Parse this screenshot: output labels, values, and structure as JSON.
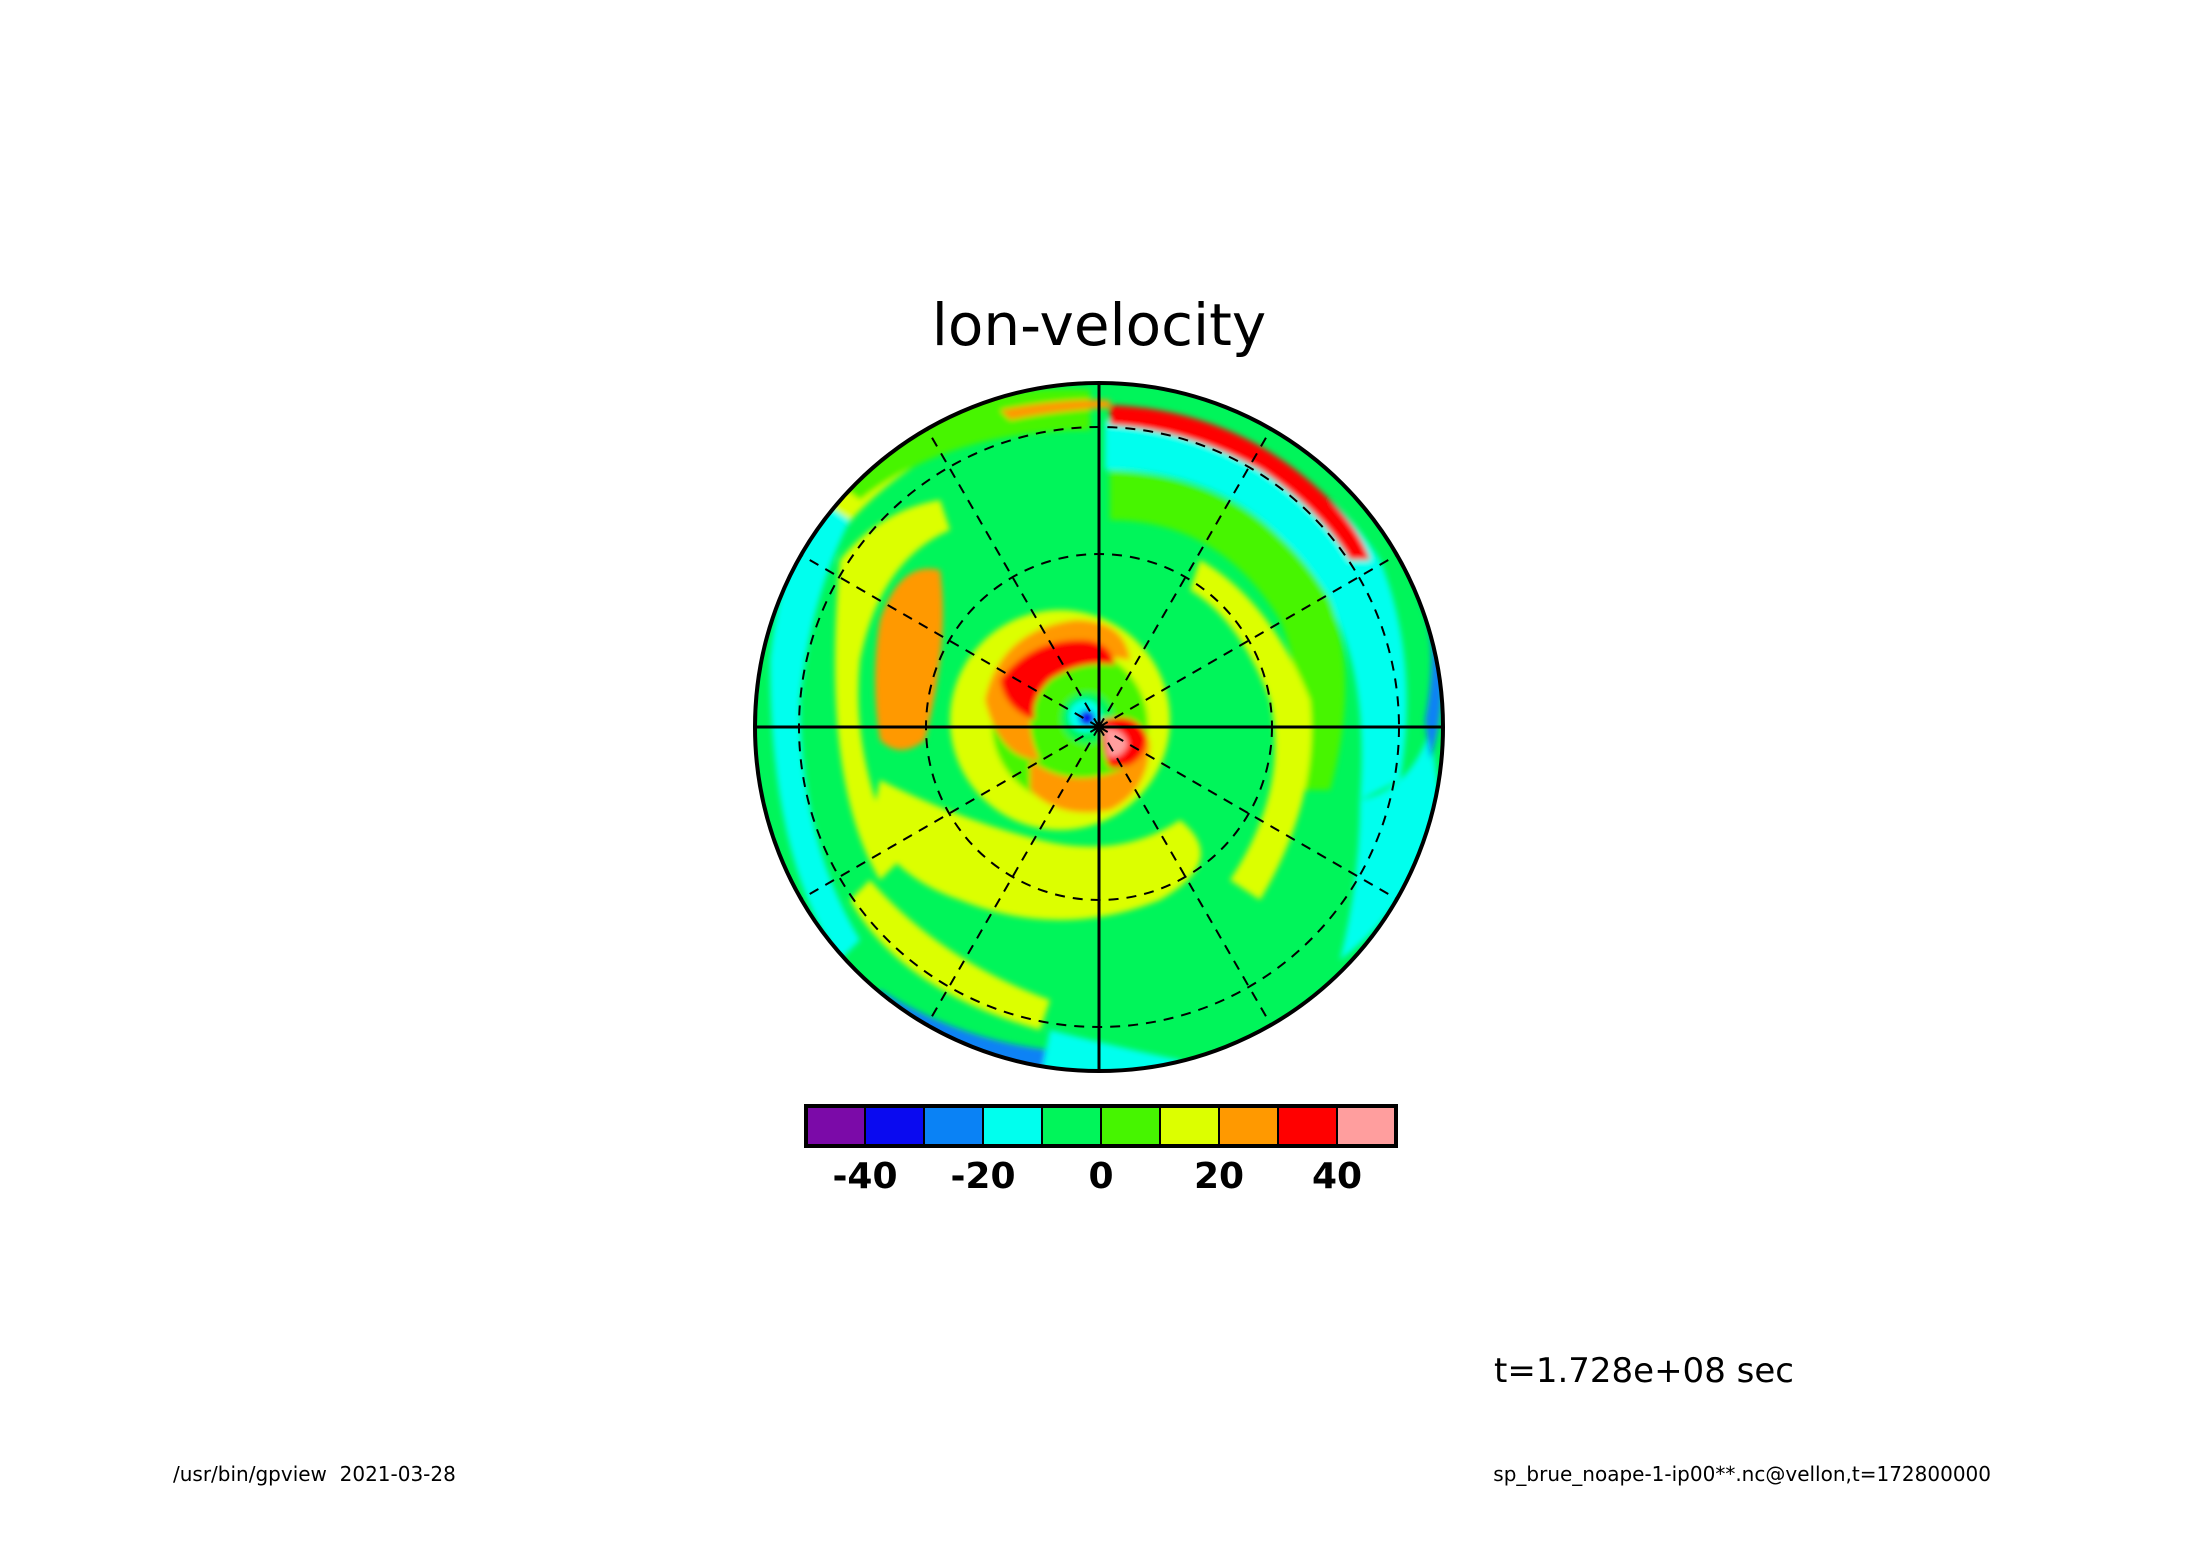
{
  "chart_data": {
    "type": "heatmap",
    "projection": "polar",
    "title": "lon-velocity",
    "time_label": "t=1.728e+08 sec",
    "colorbar": {
      "levels": [
        -50,
        -40,
        -30,
        -20,
        -10,
        0,
        10,
        20,
        30,
        40,
        50
      ],
      "tick_values": [
        -40,
        -20,
        0,
        20,
        40
      ],
      "tick_labels": [
        "-40",
        "-20",
        "0",
        "20",
        "40"
      ],
      "colors": [
        "#7b0aa8",
        "#0a0af0",
        "#0a82f5",
        "#00ffee",
        "#00f55a",
        "#46f500",
        "#dcff00",
        "#ff9900",
        "#ff0000",
        "#ff9e9e"
      ]
    },
    "features": [
      {
        "label": "red crescent near pole",
        "value": 40
      },
      {
        "label": "pink spot at pole",
        "value": 50
      },
      {
        "label": "blue spot at pole",
        "value": -40
      },
      {
        "label": "red arc outer ring",
        "value": 40
      },
      {
        "label": "cyan outer band",
        "value": -20
      },
      {
        "label": "yellow band",
        "value": 20
      }
    ]
  },
  "footer": {
    "left": "/usr/bin/gpview  2021-03-28",
    "right": "sp_brue_noape-1-ip00**.nc@vellon,t=172800000"
  }
}
